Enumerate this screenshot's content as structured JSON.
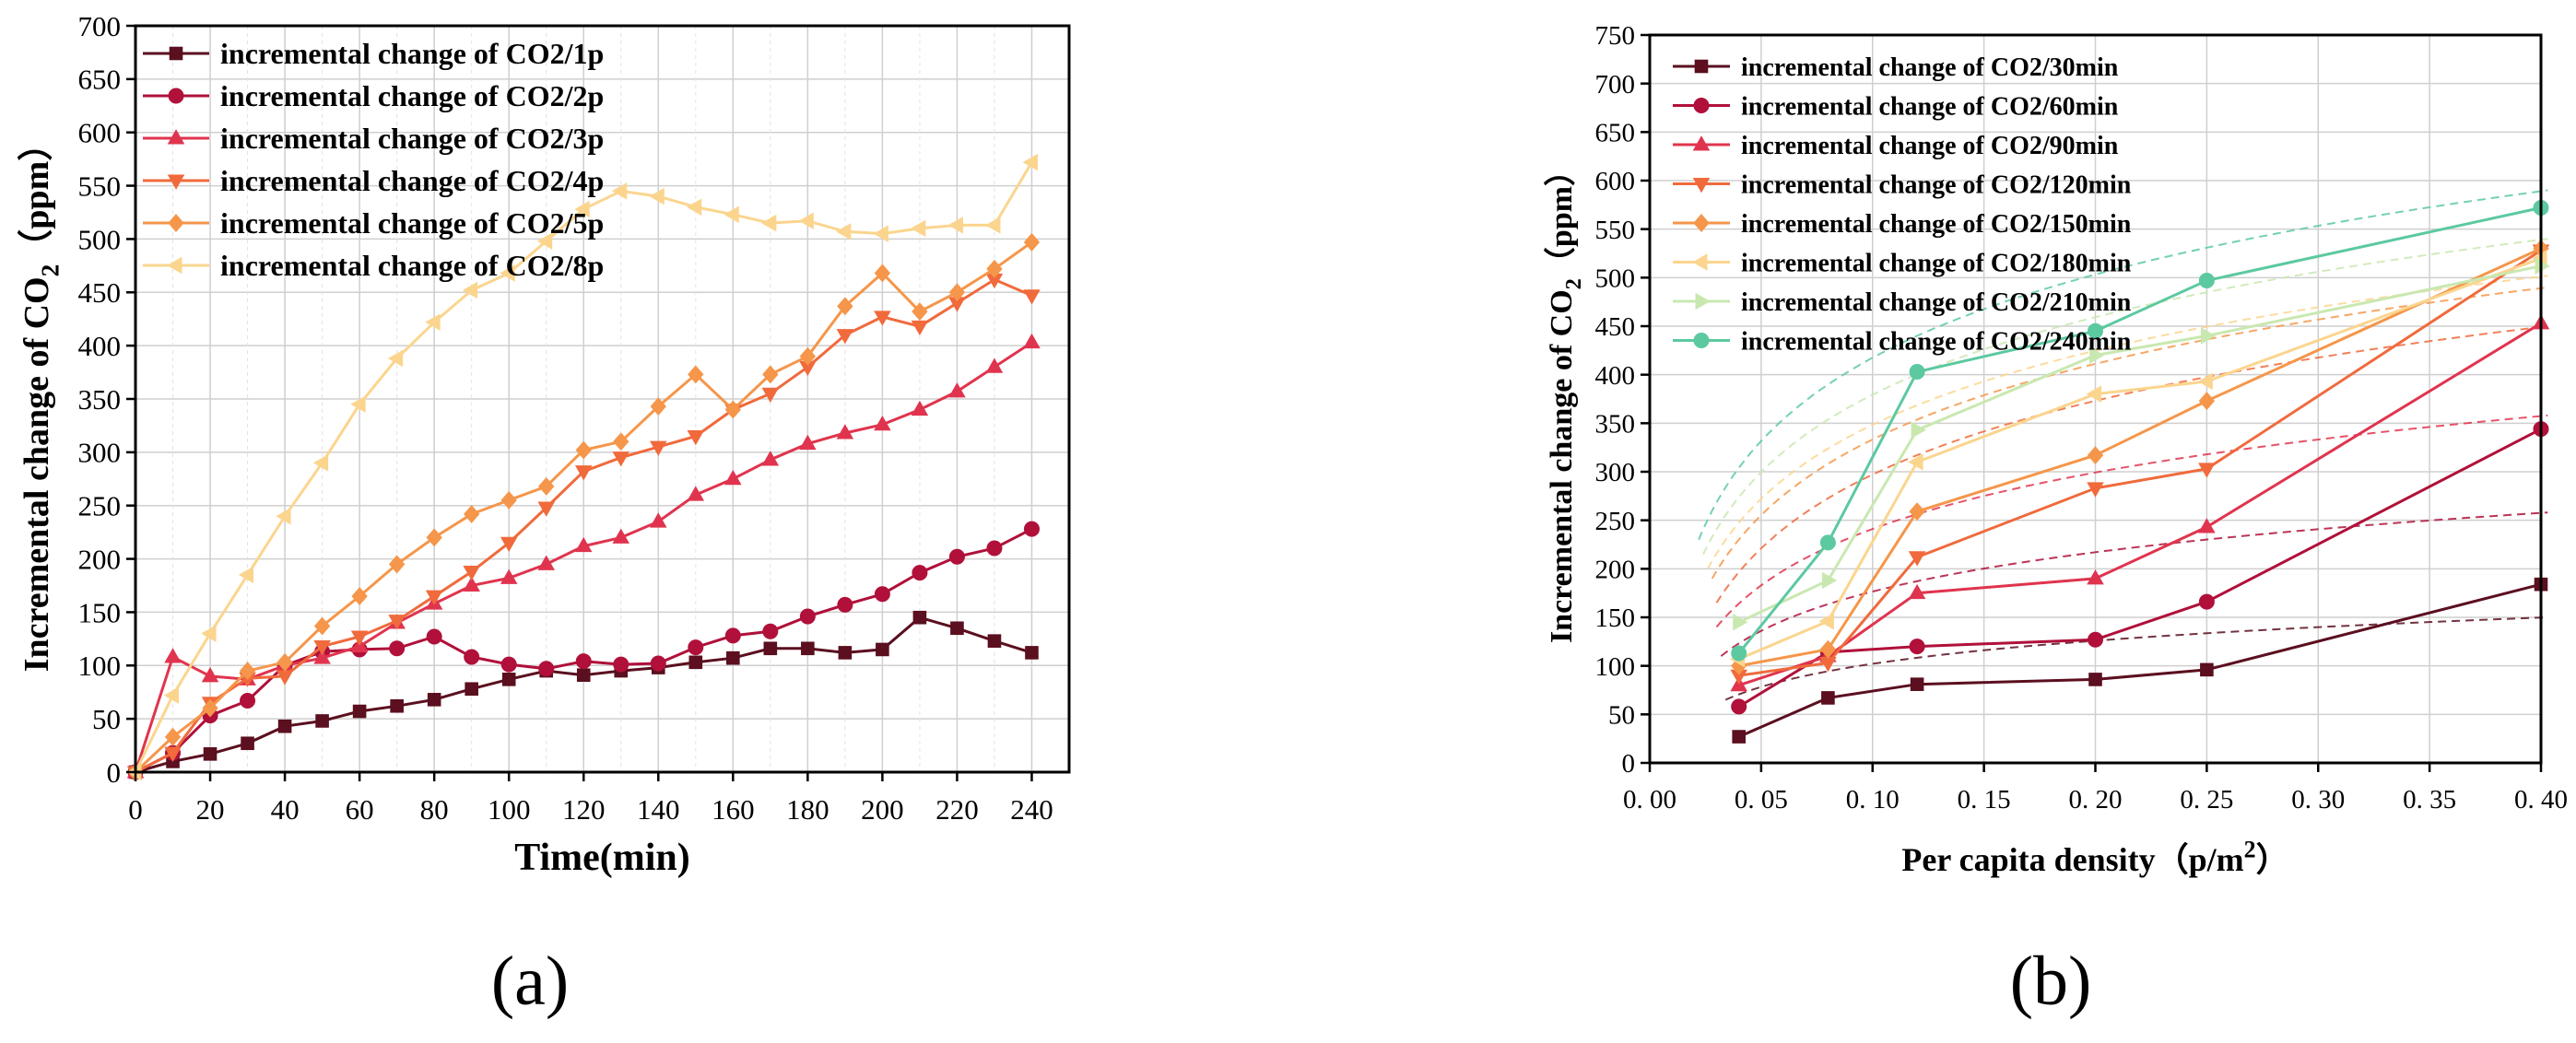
{
  "panels": {
    "a": {
      "label": "(a)"
    },
    "b": {
      "label": "(b)"
    }
  },
  "chart_data": [
    {
      "id": "a",
      "type": "line",
      "title": "",
      "xlabel": "Time(min)",
      "ylabel": "Incremental change of CO",
      "ylabel_sub": "2",
      "ylabel_unit": "（ppm）",
      "xlim": [
        0,
        250
      ],
      "ylim": [
        0,
        700
      ],
      "xticks": [
        0,
        20,
        40,
        60,
        80,
        100,
        120,
        140,
        160,
        180,
        200,
        220,
        240
      ],
      "xtick_labels": [
        "0",
        "20",
        "40",
        "60",
        "80",
        "100",
        "120",
        "140",
        "160",
        "180",
        "200",
        "220",
        "240"
      ],
      "yticks": [
        0,
        50,
        100,
        150,
        200,
        250,
        300,
        350,
        400,
        450,
        500,
        550,
        600,
        650,
        700
      ],
      "ytick_labels": [
        "0",
        "50",
        "100",
        "150",
        "200",
        "250",
        "300",
        "350",
        "400",
        "450",
        "500",
        "550",
        "600",
        "650",
        "700"
      ],
      "grid": true,
      "legend_position": "top-left",
      "series": [
        {
          "name": "incremental change of CO2/1p",
          "color": "#5b0f1f",
          "marker": "square",
          "x": [
            0,
            10,
            20,
            30,
            40,
            50,
            60,
            70,
            80,
            90,
            100,
            110,
            120,
            130,
            140,
            150,
            160,
            170,
            180,
            190,
            200,
            210,
            220,
            230,
            240
          ],
          "values": [
            0,
            10,
            17,
            27,
            43,
            48,
            57,
            62,
            68,
            78,
            87,
            95,
            91,
            95,
            98,
            103,
            107,
            116,
            116,
            112,
            115,
            145,
            135,
            123,
            112
          ]
        },
        {
          "name": "incremental change of CO2/2p",
          "color": "#b0103a",
          "marker": "circle",
          "x": [
            0,
            10,
            20,
            30,
            40,
            50,
            60,
            70,
            80,
            90,
            100,
            110,
            120,
            130,
            140,
            150,
            160,
            170,
            180,
            190,
            200,
            210,
            220,
            230,
            240
          ],
          "values": [
            0,
            18,
            53,
            67,
            100,
            113,
            115,
            116,
            127,
            108,
            101,
            97,
            104,
            101,
            102,
            117,
            128,
            132,
            146,
            157,
            167,
            187,
            202,
            210,
            228
          ]
        },
        {
          "name": "incremental change of CO2/3p",
          "color": "#e0344e",
          "marker": "triangle-up",
          "x": [
            0,
            10,
            20,
            30,
            40,
            50,
            60,
            70,
            80,
            90,
            100,
            110,
            120,
            130,
            140,
            150,
            160,
            170,
            180,
            190,
            200,
            210,
            220,
            230,
            240
          ],
          "values": [
            0,
            108,
            90,
            87,
            100,
            107,
            118,
            140,
            158,
            175,
            182,
            195,
            212,
            220,
            235,
            260,
            275,
            293,
            308,
            318,
            326,
            340,
            357,
            380,
            403
          ]
        },
        {
          "name": "incremental change of CO2/4p",
          "color": "#f06a3c",
          "marker": "triangle-down",
          "x": [
            0,
            10,
            20,
            30,
            40,
            50,
            60,
            70,
            80,
            90,
            100,
            110,
            120,
            130,
            140,
            150,
            160,
            170,
            180,
            190,
            200,
            210,
            220,
            230,
            240
          ],
          "values": [
            0,
            18,
            65,
            88,
            90,
            118,
            127,
            142,
            165,
            188,
            215,
            248,
            282,
            295,
            305,
            315,
            340,
            355,
            380,
            410,
            427,
            418,
            440,
            462,
            447
          ]
        },
        {
          "name": "incremental change of CO2/5p",
          "color": "#f5964a",
          "marker": "diamond",
          "x": [
            0,
            10,
            20,
            30,
            40,
            50,
            60,
            70,
            80,
            90,
            100,
            110,
            120,
            130,
            140,
            150,
            160,
            170,
            180,
            190,
            200,
            210,
            220,
            230,
            240
          ],
          "values": [
            0,
            33,
            60,
            95,
            103,
            137,
            165,
            195,
            220,
            242,
            255,
            268,
            302,
            310,
            343,
            373,
            340,
            373,
            390,
            437,
            468,
            432,
            450,
            472,
            497
          ]
        },
        {
          "name": "incremental change of CO2/8p",
          "color": "#fbd58e",
          "marker": "triangle-left",
          "x": [
            0,
            10,
            20,
            30,
            40,
            50,
            60,
            70,
            80,
            90,
            100,
            110,
            120,
            130,
            140,
            150,
            160,
            170,
            180,
            190,
            200,
            210,
            220,
            230,
            240
          ],
          "values": [
            0,
            72,
            130,
            185,
            240,
            290,
            345,
            388,
            422,
            452,
            468,
            498,
            528,
            545,
            540,
            530,
            523,
            515,
            517,
            507,
            505,
            510,
            513,
            513,
            572
          ]
        }
      ]
    },
    {
      "id": "b",
      "type": "line",
      "title": "",
      "xlabel": "Per capita density（p/m",
      "xlabel_sup": "2",
      "xlabel_end": "）",
      "ylabel": "Incremental change of CO",
      "ylabel_sub": "2",
      "ylabel_unit": "（ppm）",
      "xlim": [
        0.0,
        0.4
      ],
      "ylim": [
        0,
        750
      ],
      "xticks": [
        0.0,
        0.05,
        0.1,
        0.15,
        0.2,
        0.25,
        0.3,
        0.35,
        0.4
      ],
      "xtick_labels": [
        "0. 00",
        "0. 05",
        "0. 10",
        "0. 15",
        "0. 20",
        "0. 25",
        "0. 30",
        "0. 35",
        "0. 40"
      ],
      "yticks": [
        0,
        50,
        100,
        150,
        200,
        250,
        300,
        350,
        400,
        450,
        500,
        550,
        600,
        650,
        700,
        750
      ],
      "ytick_labels": [
        "0",
        "50",
        "100",
        "150",
        "200",
        "250",
        "300",
        "350",
        "400",
        "450",
        "500",
        "550",
        "600",
        "650",
        "700",
        "750"
      ],
      "grid": true,
      "legend_position": "top-left",
      "fit_lines": "dashed logarithmic trend per series",
      "series": [
        {
          "name": "incremental change of CO2/30min",
          "color": "#5b0f1f",
          "marker": "square",
          "x": [
            0.04,
            0.08,
            0.12,
            0.2,
            0.25,
            0.4
          ],
          "values": [
            27,
            67,
            81,
            86,
            96,
            184
          ],
          "fit": [
            0.034,
            65,
            0.403,
            150
          ]
        },
        {
          "name": "incremental change of CO2/60min",
          "color": "#b0103a",
          "marker": "circle",
          "x": [
            0.04,
            0.08,
            0.12,
            0.2,
            0.25,
            0.4
          ],
          "values": [
            58,
            114,
            120,
            127,
            166,
            344
          ],
          "fit": [
            0.032,
            110,
            0.403,
            258
          ]
        },
        {
          "name": "incremental change of CO2/90min",
          "color": "#e0344e",
          "marker": "triangle-up",
          "x": [
            0.04,
            0.08,
            0.12,
            0.2,
            0.25,
            0.4
          ],
          "values": [
            80,
            110,
            175,
            190,
            243,
            453
          ],
          "fit": [
            0.03,
            140,
            0.403,
            358
          ]
        },
        {
          "name": "incremental change of CO2/120min",
          "color": "#f06a3c",
          "marker": "triangle-down",
          "x": [
            0.04,
            0.08,
            0.12,
            0.2,
            0.25,
            0.4
          ],
          "values": [
            90,
            103,
            212,
            283,
            303,
            528
          ],
          "fit": [
            0.03,
            165,
            0.403,
            450
          ]
        },
        {
          "name": "incremental change of CO2/150min",
          "color": "#f5964a",
          "marker": "diamond",
          "x": [
            0.04,
            0.08,
            0.12,
            0.2,
            0.25,
            0.4
          ],
          "values": [
            100,
            117,
            259,
            317,
            373,
            530
          ],
          "fit": [
            0.028,
            190,
            0.403,
            490
          ]
        },
        {
          "name": "incremental change of CO2/180min",
          "color": "#fbd58e",
          "marker": "triangle-left",
          "x": [
            0.04,
            0.08,
            0.12,
            0.2,
            0.25,
            0.4
          ],
          "values": [
            107,
            146,
            310,
            380,
            393,
            520
          ],
          "fit": [
            0.026,
            200,
            0.403,
            502
          ]
        },
        {
          "name": "incremental change of CO2/210min",
          "color": "#c9e8b0",
          "marker": "triangle-right",
          "x": [
            0.04,
            0.08,
            0.12,
            0.2,
            0.25,
            0.4
          ],
          "values": [
            145,
            188,
            343,
            420,
            440,
            512
          ],
          "fit": [
            0.024,
            215,
            0.403,
            540
          ]
        },
        {
          "name": "incremental change of CO2/240min",
          "color": "#5cc9a0",
          "marker": "circle",
          "x": [
            0.04,
            0.08,
            0.12,
            0.2,
            0.25,
            0.4
          ],
          "values": [
            113,
            227,
            403,
            445,
            497,
            572
          ],
          "fit": [
            0.022,
            230,
            0.403,
            590
          ]
        }
      ]
    }
  ]
}
